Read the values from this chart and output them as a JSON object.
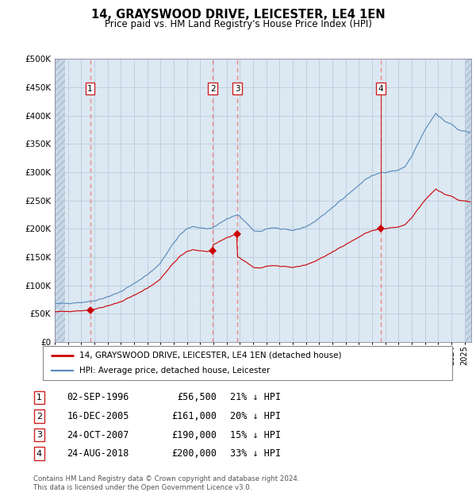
{
  "title": "14, GRAYSWOOD DRIVE, LEICESTER, LE4 1EN",
  "subtitle": "Price paid vs. HM Land Registry's House Price Index (HPI)",
  "footer": "Contains HM Land Registry data © Crown copyright and database right 2024.\nThis data is licensed under the Open Government Licence v3.0.",
  "legend_line1": "14, GRAYSWOOD DRIVE, LEICESTER, LE4 1EN (detached house)",
  "legend_line2": "HPI: Average price, detached house, Leicester",
  "transactions": [
    {
      "num": 1,
      "date": "02-SEP-1996",
      "price": 56500,
      "pct": "21%",
      "year": 1996.67
    },
    {
      "num": 2,
      "date": "16-DEC-2005",
      "price": 161000,
      "pct": "20%",
      "year": 2005.96
    },
    {
      "num": 3,
      "date": "24-OCT-2007",
      "price": 190000,
      "pct": "15%",
      "year": 2007.81
    },
    {
      "num": 4,
      "date": "24-AUG-2018",
      "price": 200000,
      "pct": "33%",
      "year": 2018.64
    }
  ],
  "xmin": 1994.0,
  "xmax": 2025.5,
  "ymin": 0,
  "ymax": 500000,
  "yticks": [
    0,
    50000,
    100000,
    150000,
    200000,
    250000,
    300000,
    350000,
    400000,
    450000,
    500000
  ],
  "ytick_labels": [
    "£0",
    "£50K",
    "£100K",
    "£150K",
    "£200K",
    "£250K",
    "£300K",
    "£350K",
    "£400K",
    "£450K",
    "£500K"
  ],
  "hpi_color": "#5588bb",
  "price_color": "#cc0000",
  "vline_color": "#ee8888",
  "bg_color": "#dce8f2",
  "grid_color": "#bbccdd",
  "hatch_color": "#c8d8e8",
  "num_box_color": "#cc2222"
}
